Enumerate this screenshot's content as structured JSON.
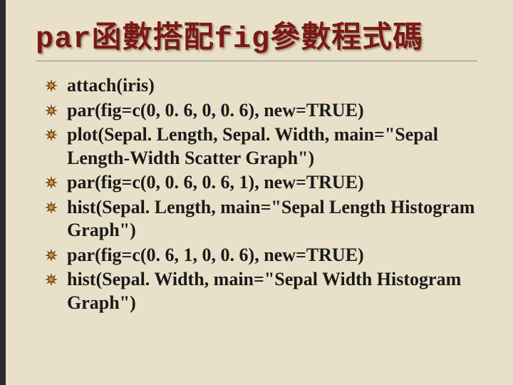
{
  "title": {
    "part1": "par",
    "part2": "函數搭配",
    "part3": "fig",
    "part4": "參數程式碼"
  },
  "bullet_color_outer": "#7a4a1a",
  "bullet_color_inner": "#c89a4a",
  "items": [
    "attach(iris)",
    "par(fig=c(0, 0. 6, 0, 0. 6), new=TRUE)",
    "plot(Sepal. Length, Sepal. Width, main=\"Sepal Length-Width Scatter Graph\")",
    "par(fig=c(0, 0. 6, 0. 6, 1), new=TRUE)",
    "hist(Sepal. Length, main=\"Sepal Length Histogram Graph\")",
    "par(fig=c(0. 6, 1, 0, 0. 6), new=TRUE)",
    "hist(Sepal. Width, main=\"Sepal Width Histogram Graph\")"
  ]
}
